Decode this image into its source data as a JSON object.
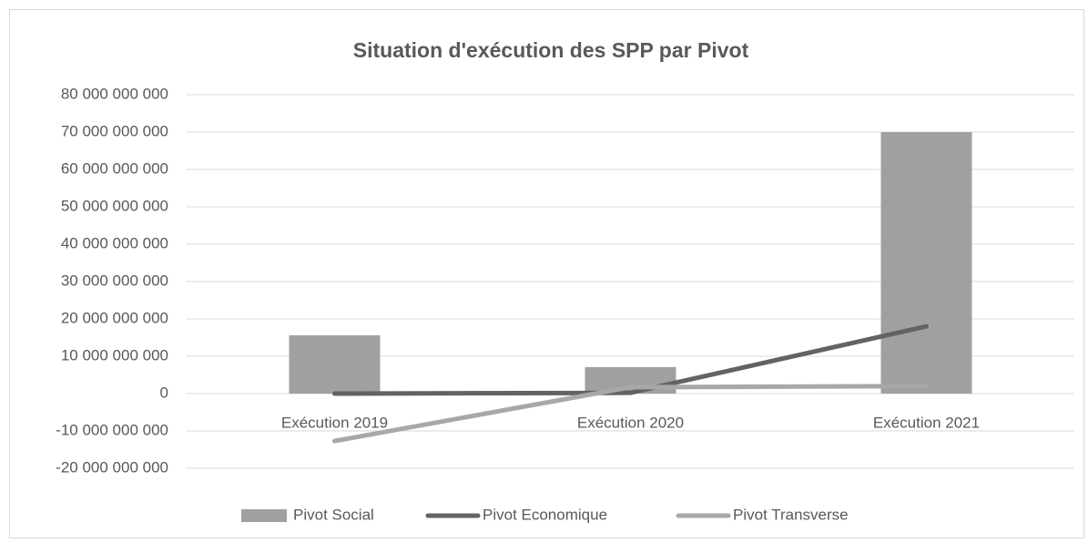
{
  "chart_data": {
    "type": "combo",
    "title": "Situation d'exécution des SPP par Pivot",
    "categories": [
      "Exécution 2019",
      "Exécution 2020",
      "Exécution 2021"
    ],
    "series": [
      {
        "name": "Pivot Social",
        "type": "bar",
        "color": "#a0a0a0",
        "values": [
          15600000000,
          7100000000,
          70000000000
        ]
      },
      {
        "name": "Pivot Economique",
        "type": "line",
        "color": "#636363",
        "values": [
          0,
          200000000,
          18000000000
        ]
      },
      {
        "name": "Pivot Transverse",
        "type": "line",
        "color": "#a8a8a8",
        "values": [
          -12700000000,
          1700000000,
          2000000000
        ]
      }
    ],
    "ylim": [
      -20000000000,
      80000000000
    ],
    "yticks": [
      {
        "value": -20000000000,
        "label": "-20 000 000 000"
      },
      {
        "value": -10000000000,
        "label": "-10 000 000 000"
      },
      0,
      {
        "value": 10000000000,
        "label": "10 000 000 000"
      },
      {
        "value": 20000000000,
        "label": "20 000 000 000"
      },
      {
        "value": 30000000000,
        "label": "30 000 000 000"
      },
      {
        "value": 40000000000,
        "label": "40 000 000 000"
      },
      {
        "value": 50000000000,
        "label": "50 000 000 000"
      },
      {
        "value": 60000000000,
        "label": "60 000 000 000"
      },
      {
        "value": 70000000000,
        "label": "70 000 000 000"
      },
      {
        "value": 80000000000,
        "label": "80 000 000 000"
      }
    ],
    "grid": true,
    "legend": "bottom"
  }
}
